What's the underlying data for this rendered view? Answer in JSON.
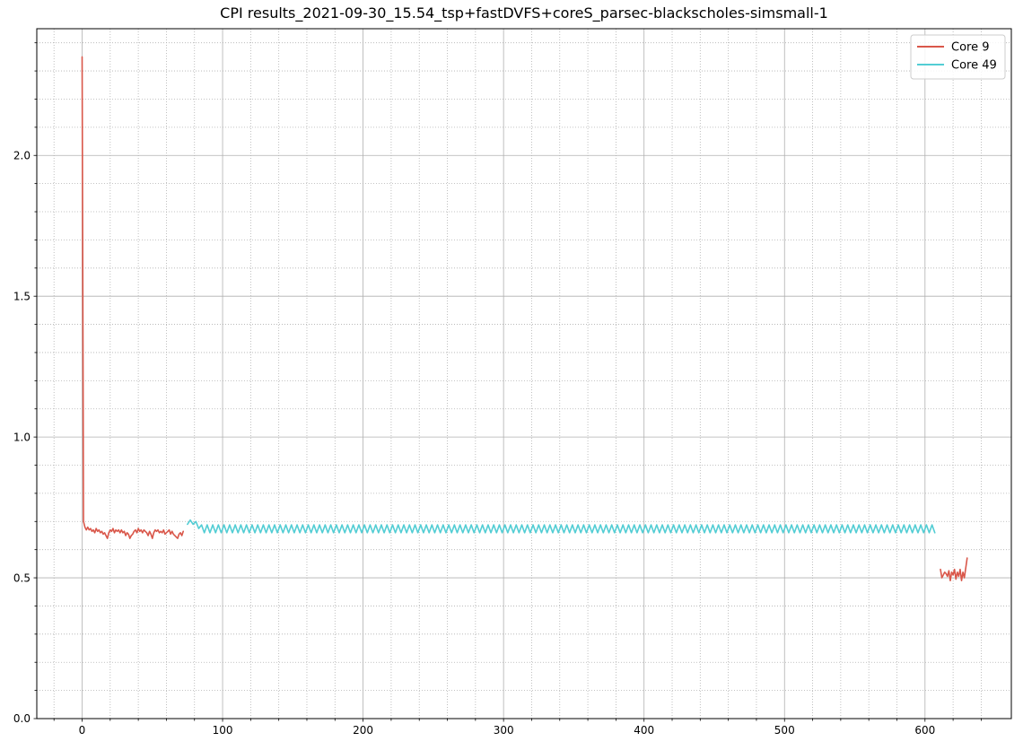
{
  "chart_data": {
    "type": "line",
    "title": "CPI results_2021-09-30_15.54_tsp+fastDVFS+coreS_parsec-blackscholes-simsmall-1",
    "xlabel": "",
    "ylabel": "",
    "xlim": [
      -30,
      660
    ],
    "ylim": [
      0,
      2.45
    ],
    "x_ticks": [
      0,
      100,
      200,
      300,
      400,
      500,
      600
    ],
    "y_ticks": [
      0.0,
      0.5,
      1.0,
      1.5,
      2.0
    ],
    "x_tick_labels": [
      "0",
      "100",
      "200",
      "300",
      "400",
      "500",
      "600"
    ],
    "y_tick_labels": [
      "0.0",
      "0.5",
      "1.0",
      "1.5",
      "2.0"
    ],
    "grid": "major and minor",
    "legend_position": "top-right",
    "series": [
      {
        "name": "Core 9",
        "color": "#d9574a",
        "segments": [
          {
            "x": [
              0,
              1,
              2,
              3,
              4,
              5,
              6,
              7,
              8,
              9,
              10,
              11,
              12,
              13,
              14,
              15,
              16,
              17,
              18,
              19,
              20,
              21,
              22,
              23,
              24,
              25,
              26,
              27,
              28,
              29,
              30,
              31,
              32,
              33,
              34,
              35,
              36,
              37,
              38,
              39,
              40,
              41,
              42,
              43,
              44,
              45,
              46,
              47,
              48,
              49,
              50,
              51,
              52,
              53,
              54,
              55,
              56,
              57,
              58,
              59,
              60,
              61,
              62,
              63,
              64,
              65,
              66,
              67,
              68,
              69,
              70,
              71,
              72
            ],
            "y": [
              2.35,
              0.7,
              0.68,
              0.67,
              0.68,
              0.67,
              0.675,
              0.665,
              0.67,
              0.66,
              0.675,
              0.665,
              0.67,
              0.66,
              0.665,
              0.655,
              0.66,
              0.65,
              0.64,
              0.66,
              0.67,
              0.665,
              0.675,
              0.66,
              0.67,
              0.665,
              0.67,
              0.66,
              0.67,
              0.66,
              0.665,
              0.65,
              0.66,
              0.655,
              0.64,
              0.65,
              0.655,
              0.665,
              0.67,
              0.66,
              0.675,
              0.665,
              0.67,
              0.66,
              0.67,
              0.665,
              0.66,
              0.65,
              0.665,
              0.655,
              0.64,
              0.66,
              0.67,
              0.665,
              0.67,
              0.66,
              0.665,
              0.66,
              0.67,
              0.655,
              0.66,
              0.665,
              0.67,
              0.655,
              0.665,
              0.655,
              0.65,
              0.645,
              0.64,
              0.655,
              0.66,
              0.65,
              0.665
            ]
          },
          {
            "x": [
              611,
              612,
              613,
              614,
              615,
              616,
              617,
              618,
              619,
              620,
              621,
              622,
              623,
              624,
              625,
              626,
              627,
              628,
              629,
              630
            ],
            "y": [
              0.53,
              0.5,
              0.51,
              0.52,
              0.515,
              0.505,
              0.525,
              0.49,
              0.52,
              0.51,
              0.53,
              0.495,
              0.52,
              0.505,
              0.53,
              0.49,
              0.52,
              0.5,
              0.535,
              0.57
            ]
          }
        ]
      },
      {
        "name": "Core 49",
        "color": "#53cdd4",
        "segments": [
          {
            "x_start": 75,
            "x_end": 608,
            "x_step": 2,
            "initial": [
              0.69,
              0.705,
              0.69,
              0.7,
              0.675
            ],
            "low": 0.66,
            "high": 0.688
          }
        ]
      }
    ]
  }
}
